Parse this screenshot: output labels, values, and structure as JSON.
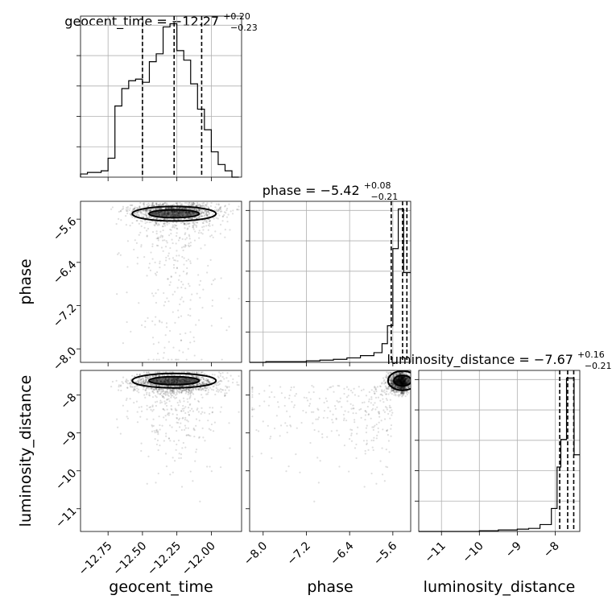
{
  "chart_data": {
    "type": "corner",
    "parameters": [
      "geocent_time",
      "phase",
      "luminosity_distance"
    ],
    "titles": [
      {
        "param": "geocent_time",
        "median": "−12.27",
        "plus": "+0.20",
        "minus": "−0.23"
      },
      {
        "param": "phase",
        "median": "−5.42",
        "plus": "+0.08",
        "minus": "−0.21"
      },
      {
        "param": "luminosity_distance",
        "median": "−7.67",
        "plus": "+0.16",
        "minus": "−0.21"
      }
    ],
    "ranges": {
      "geocent_time": [
        -12.95,
        -11.78
      ],
      "phase": [
        -8.25,
        -5.27
      ],
      "luminosity_distance": [
        -11.6,
        -7.35
      ]
    },
    "ticks": {
      "geocent_time": {
        "values": [
          -12.75,
          -12.5,
          -12.25,
          -12.0
        ],
        "labels": [
          "−12.75",
          "−12.50",
          "−12.25",
          "−12.00"
        ]
      },
      "phase": {
        "values": [
          -8.0,
          -7.2,
          -6.4,
          -5.6
        ],
        "labels": [
          "−8.0",
          "−7.2",
          "−6.4",
          "−5.6"
        ]
      },
      "luminosity_distance": {
        "values": [
          -11,
          -10,
          -9,
          -8
        ],
        "labels": [
          "−11",
          "−10",
          "−9",
          "−8"
        ]
      }
    },
    "quantiles": {
      "geocent_time": [
        -12.5,
        -12.27,
        -12.07
      ],
      "phase": [
        -5.63,
        -5.42,
        -5.34
      ],
      "luminosity_distance": [
        -7.88,
        -7.67,
        -7.51
      ]
    },
    "histograms": {
      "geocent_time": {
        "edges": [
          -12.95,
          -12.9,
          -12.85,
          -12.8,
          -12.75,
          -12.7,
          -12.65,
          -12.6,
          -12.55,
          -12.5,
          -12.45,
          -12.4,
          -12.35,
          -12.3,
          -12.25,
          -12.2,
          -12.15,
          -12.1,
          -12.05,
          -12.0,
          -11.95,
          -11.9,
          -11.85,
          -11.8
        ],
        "counts": [
          2,
          3,
          3,
          4,
          12,
          45,
          56,
          61,
          62,
          60,
          73,
          78,
          95,
          97,
          80,
          74,
          59,
          43,
          30,
          16,
          8,
          4,
          0
        ]
      },
      "phase": {
        "edges": [
          -8.25,
          -7.95,
          -7.7,
          -7.45,
          -7.2,
          -6.95,
          -6.7,
          -6.45,
          -6.2,
          -5.95,
          -5.8,
          -5.7,
          -5.6,
          -5.5,
          -5.4,
          -5.27
        ],
        "counts": [
          0,
          1,
          1,
          1,
          2,
          3,
          4,
          6,
          9,
          13,
          25,
          49,
          152,
          205,
          120
        ]
      },
      "luminosity_distance": {
        "edges": [
          -11.6,
          -10.0,
          -9.5,
          -9.0,
          -8.7,
          -8.4,
          -8.1,
          -7.95,
          -7.85,
          -7.7,
          -7.5,
          -7.35
        ],
        "counts": [
          0,
          1,
          2,
          3,
          4,
          9,
          30,
          84,
          120,
          200,
          100
        ]
      }
    }
  }
}
